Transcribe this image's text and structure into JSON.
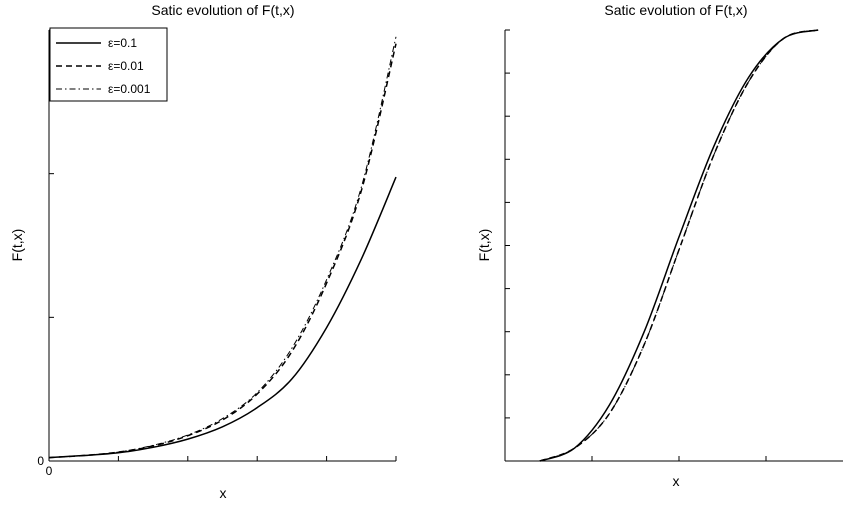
{
  "chart_data": [
    {
      "type": "line",
      "title": "Satic evolution of F(t,x)",
      "xlabel": "x",
      "ylabel": "F(t,x)",
      "xlim": [
        0,
        5
      ],
      "ylim": [
        0,
        6.3
      ],
      "x_tick_labels": [
        "0"
      ],
      "y_tick_labels": [
        "0"
      ],
      "legend": {
        "position": "top-left"
      },
      "series": [
        {
          "name": "ε=0.1",
          "style": "solid",
          "x": [
            0,
            0.5,
            1,
            1.5,
            2,
            2.5,
            3,
            3.5,
            4,
            4.5,
            5
          ],
          "y": [
            0.05,
            0.08,
            0.12,
            0.2,
            0.32,
            0.5,
            0.78,
            1.2,
            1.95,
            2.95,
            4.15
          ]
        },
        {
          "name": "ε=0.01",
          "style": "dashed",
          "x": [
            0,
            0.5,
            1,
            1.5,
            2,
            2.5,
            3,
            3.5,
            4,
            4.5,
            5
          ],
          "y": [
            0.05,
            0.08,
            0.13,
            0.22,
            0.37,
            0.6,
            0.98,
            1.6,
            2.6,
            3.95,
            6.1
          ]
        },
        {
          "name": "ε=0.001",
          "style": "dashdot",
          "x": [
            0,
            0.5,
            1,
            1.5,
            2,
            2.5,
            3,
            3.5,
            4,
            4.5,
            5
          ],
          "y": [
            0.05,
            0.08,
            0.13,
            0.23,
            0.38,
            0.62,
            1.0,
            1.65,
            2.65,
            4.0,
            6.2
          ]
        }
      ]
    },
    {
      "type": "line",
      "title": "Satic evolution of F(t,x)",
      "xlabel": "x",
      "ylabel": "F(t,x)",
      "xlim": [
        0,
        10
      ],
      "ylim": [
        0,
        1
      ],
      "series": [
        {
          "name": "ε=0.1",
          "style": "solid",
          "x": [
            1,
            2,
            3,
            4,
            5,
            6,
            7,
            8,
            9
          ],
          "y": [
            0,
            0.03,
            0.13,
            0.3,
            0.52,
            0.73,
            0.89,
            0.98,
            1.0
          ]
        },
        {
          "name": "ε=0.01",
          "style": "dashed",
          "x": [
            1,
            2,
            3,
            4,
            5,
            6,
            7,
            8,
            9
          ],
          "y": [
            0,
            0.03,
            0.11,
            0.27,
            0.49,
            0.71,
            0.88,
            0.98,
            1.0
          ]
        },
        {
          "name": "ε=0.001",
          "style": "dashdot",
          "x": [
            1,
            2,
            3,
            4,
            5,
            6,
            7,
            8,
            9
          ],
          "y": [
            0,
            0.03,
            0.11,
            0.27,
            0.49,
            0.71,
            0.88,
            0.98,
            1.0
          ]
        }
      ]
    }
  ]
}
